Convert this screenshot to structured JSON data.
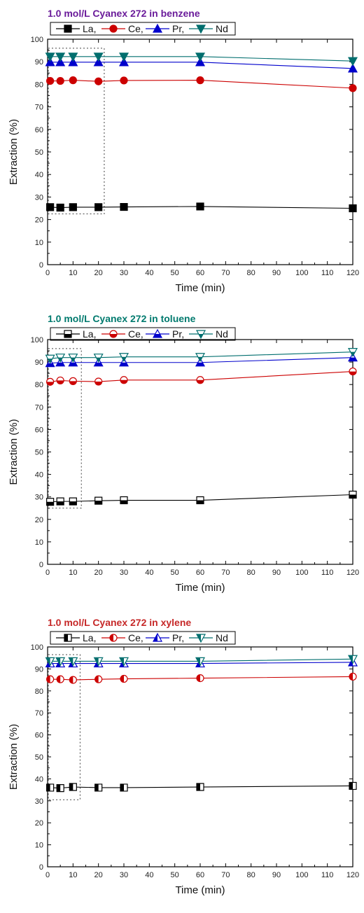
{
  "chart_data": [
    {
      "type": "line",
      "title": "1.0 mol/L Cyanex 272 in benzene",
      "title_color": "#6a1b9a",
      "xlabel": "Time (min)",
      "ylabel": "Extraction (%)",
      "xlim": [
        0,
        120
      ],
      "ylim": [
        0,
        100
      ],
      "xticks": [
        0,
        10,
        20,
        30,
        40,
        50,
        60,
        70,
        80,
        90,
        100,
        110,
        120
      ],
      "yticks": [
        0,
        10,
        20,
        30,
        40,
        50,
        60,
        70,
        80,
        90,
        100
      ],
      "x": [
        1,
        5,
        10,
        20,
        30,
        60,
        120
      ],
      "marker_fill": "full",
      "legend_labels": [
        "La,",
        "Ce,",
        "Pr,",
        "Nd"
      ],
      "series": [
        {
          "name": "La,",
          "marker": "square",
          "color": "#000000",
          "values": [
            25.5,
            25.3,
            25.5,
            25.5,
            25.6,
            25.8,
            25.0
          ]
        },
        {
          "name": "Ce,",
          "marker": "circle",
          "color": "#cc0000",
          "values": [
            81.5,
            81.5,
            81.8,
            81.3,
            81.7,
            81.8,
            78.3
          ]
        },
        {
          "name": "Pr,",
          "marker": "triangle-up",
          "color": "#0000cc",
          "values": [
            89.8,
            89.8,
            89.8,
            89.8,
            89.8,
            89.8,
            87.0
          ]
        },
        {
          "name": "Nd",
          "marker": "triangle-down",
          "color": "#006e6e",
          "values": [
            92.3,
            92.3,
            92.3,
            92.3,
            92.3,
            92.3,
            90.3
          ]
        }
      ]
    },
    {
      "type": "line",
      "title": "1.0 mol/L Cyanex 272 in toluene",
      "title_color": "#007a6e",
      "xlabel": "Time (min)",
      "ylabel": "Extraction (%)",
      "xlim": [
        0,
        120
      ],
      "ylim": [
        0,
        100
      ],
      "xticks": [
        0,
        10,
        20,
        30,
        40,
        50,
        60,
        70,
        80,
        90,
        100,
        110,
        120
      ],
      "yticks": [
        0,
        10,
        20,
        30,
        40,
        50,
        60,
        70,
        80,
        90,
        100
      ],
      "x": [
        1,
        5,
        10,
        20,
        30,
        60,
        120
      ],
      "marker_fill": "bottom",
      "legend_labels": [
        "La,",
        "Ce,",
        "Pr,",
        "Nd"
      ],
      "series": [
        {
          "name": "La,",
          "marker": "square",
          "color": "#000000",
          "values": [
            27.8,
            28.0,
            28.0,
            28.3,
            28.5,
            28.5,
            31.0
          ]
        },
        {
          "name": "Ce,",
          "marker": "circle",
          "color": "#cc0000",
          "values": [
            81.2,
            81.8,
            81.5,
            81.3,
            82.0,
            82.0,
            85.8
          ]
        },
        {
          "name": "Pr,",
          "marker": "triangle-up",
          "color": "#0000cc",
          "values": [
            89.5,
            89.8,
            89.8,
            89.8,
            89.8,
            89.8,
            92.0
          ]
        },
        {
          "name": "Nd",
          "marker": "triangle-down",
          "color": "#006e6e",
          "values": [
            91.5,
            92.0,
            92.0,
            92.0,
            92.3,
            92.3,
            94.5
          ]
        }
      ]
    },
    {
      "type": "line",
      "title": "1.0 mol/L Cyanex 272 in xylene",
      "title_color": "#c62828",
      "xlabel": "Time (min)",
      "ylabel": "Extraction (%)",
      "xlim": [
        0,
        120
      ],
      "ylim": [
        0,
        100
      ],
      "xticks": [
        0,
        10,
        20,
        30,
        40,
        50,
        60,
        70,
        80,
        90,
        100,
        110,
        120
      ],
      "yticks": [
        0,
        10,
        20,
        30,
        40,
        50,
        60,
        70,
        80,
        90,
        100
      ],
      "x": [
        1,
        5,
        10,
        20,
        30,
        60,
        120
      ],
      "marker_fill": "left",
      "legend_labels": [
        "La,",
        "Ce,",
        "Pr,",
        "Nd"
      ],
      "series": [
        {
          "name": "La,",
          "marker": "square",
          "color": "#000000",
          "values": [
            36.0,
            35.8,
            36.3,
            36.0,
            36.0,
            36.3,
            36.8
          ]
        },
        {
          "name": "Ce,",
          "marker": "circle",
          "color": "#cc0000",
          "values": [
            85.3,
            85.3,
            85.0,
            85.3,
            85.5,
            85.8,
            86.5
          ]
        },
        {
          "name": "Pr,",
          "marker": "triangle-up",
          "color": "#0000cc",
          "values": [
            92.5,
            92.5,
            92.5,
            92.5,
            92.5,
            92.5,
            93.0
          ]
        },
        {
          "name": "Nd",
          "marker": "triangle-down",
          "color": "#006e6e",
          "values": [
            93.5,
            93.5,
            93.5,
            93.5,
            93.5,
            93.5,
            94.5
          ]
        }
      ]
    }
  ]
}
